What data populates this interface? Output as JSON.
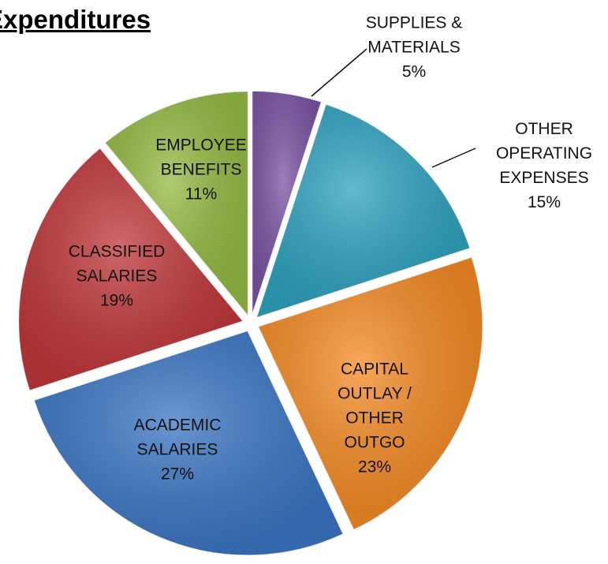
{
  "chart_data": {
    "type": "pie",
    "title": "Expenditures",
    "categories": [
      "SUPPLIES &\nMATERIALS",
      "OTHER\nOPERATING\nEXPENSES",
      "CAPITAL\nOUTLAY /\nOTHER\nOUTGO",
      "ACADEMIC\nSALARIES",
      "CLASSIFIED\nSALARIES",
      "EMPLOYEE\nBENEFITS"
    ],
    "values": [
      5,
      15,
      23,
      27,
      19,
      11
    ],
    "value_labels": [
      "5%",
      "15%",
      "23%",
      "27%",
      "19%",
      "11%"
    ],
    "colors": [
      "#7b54a3",
      "#2ea3bf",
      "#f58b24",
      "#3b76c4",
      "#c0373a",
      "#95bb43"
    ]
  }
}
